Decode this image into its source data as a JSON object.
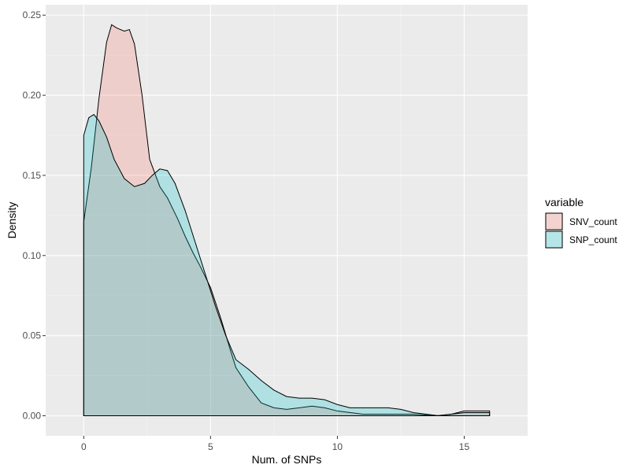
{
  "chart_data": {
    "type": "area",
    "title": "",
    "xlabel": "Num. of SNPs",
    "ylabel": "Density",
    "xlim": [
      -1.5,
      17.5
    ],
    "ylim": [
      -0.0125,
      0.2565
    ],
    "xticks": [
      0,
      5,
      10,
      15
    ],
    "xtick_labels": [
      "0",
      "5",
      "10",
      "15"
    ],
    "yticks": [
      0,
      0.05,
      0.1,
      0.15,
      0.2,
      0.25
    ],
    "ytick_labels": [
      "0.00",
      "0.05",
      "0.10",
      "0.15",
      "0.20",
      "0.25"
    ],
    "xminor": [
      2.5,
      7.5,
      12.5
    ],
    "yminor": [
      0.025,
      0.075,
      0.125,
      0.175,
      0.225
    ],
    "grid": true,
    "legend": {
      "title": "variable",
      "position": "right"
    },
    "series": [
      {
        "name": "SNV_count",
        "fill": "#f8766d",
        "x": [
          0,
          0.3,
          0.6,
          0.9,
          1.1,
          1.3,
          1.6,
          1.8,
          2.0,
          2.3,
          2.6,
          3.0,
          3.3,
          3.7,
          4.0,
          4.3,
          4.6,
          5.0,
          5.4,
          5.8,
          6.0,
          6.5,
          7.0,
          7.5,
          8.0,
          8.5,
          9.0,
          9.5,
          10.0,
          11.0,
          12.0,
          13.0,
          13.9,
          14.5,
          15.0,
          16.0
        ],
        "values": [
          0.121,
          0.155,
          0.198,
          0.233,
          0.244,
          0.242,
          0.24,
          0.241,
          0.232,
          0.2,
          0.16,
          0.143,
          0.136,
          0.123,
          0.112,
          0.102,
          0.093,
          0.08,
          0.061,
          0.04,
          0.03,
          0.018,
          0.008,
          0.005,
          0.004,
          0.005,
          0.006,
          0.005,
          0.003,
          0.001,
          0.001,
          0.001,
          0.0,
          0.001,
          0.003,
          0.003
        ]
      },
      {
        "name": "SNP_count",
        "fill": "#00bfc4",
        "x": [
          0,
          0.2,
          0.4,
          0.6,
          0.9,
          1.2,
          1.6,
          2.0,
          2.4,
          2.7,
          3.0,
          3.3,
          3.6,
          4.0,
          4.4,
          4.8,
          5.2,
          5.6,
          6.0,
          6.5,
          7.0,
          7.5,
          8.0,
          8.5,
          9.0,
          9.5,
          10.0,
          10.5,
          11.0,
          11.5,
          12.0,
          12.5,
          13.0,
          13.5,
          14.0,
          15.0,
          16.0
        ],
        "values": [
          0.175,
          0.186,
          0.188,
          0.184,
          0.174,
          0.16,
          0.148,
          0.143,
          0.145,
          0.15,
          0.154,
          0.153,
          0.145,
          0.128,
          0.108,
          0.088,
          0.068,
          0.05,
          0.035,
          0.029,
          0.022,
          0.016,
          0.012,
          0.011,
          0.011,
          0.01,
          0.007,
          0.005,
          0.005,
          0.005,
          0.005,
          0.004,
          0.002,
          0.001,
          0.0,
          0.002,
          0.002
        ]
      }
    ]
  }
}
